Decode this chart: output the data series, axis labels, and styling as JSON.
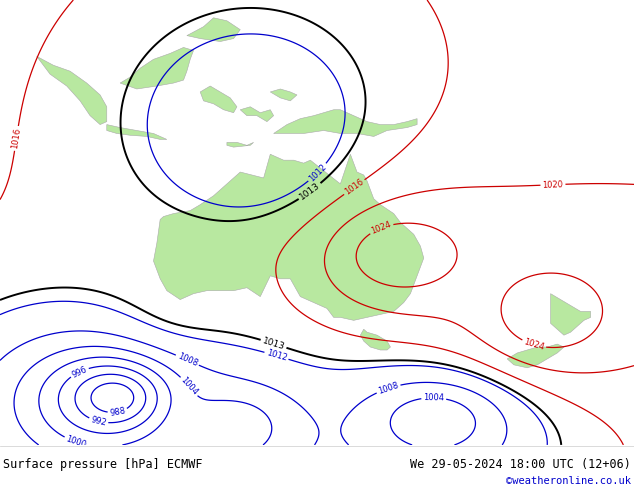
{
  "title_left": "Surface pressure [hPa] ECMWF",
  "title_right": "We 29-05-2024 18:00 UTC (12+06)",
  "watermark": "©weatheronline.co.uk",
  "land_color": "#b8e8a0",
  "ocean_color": "#d8dde8",
  "figsize": [
    6.34,
    4.9
  ],
  "dpi": 100,
  "xlim": [
    90,
    185
  ],
  "ylim": [
    -60,
    15
  ],
  "line_color_blue": "#0000cc",
  "line_color_black": "#000000",
  "line_color_red": "#cc0000",
  "footer_bg": "#ffffff"
}
